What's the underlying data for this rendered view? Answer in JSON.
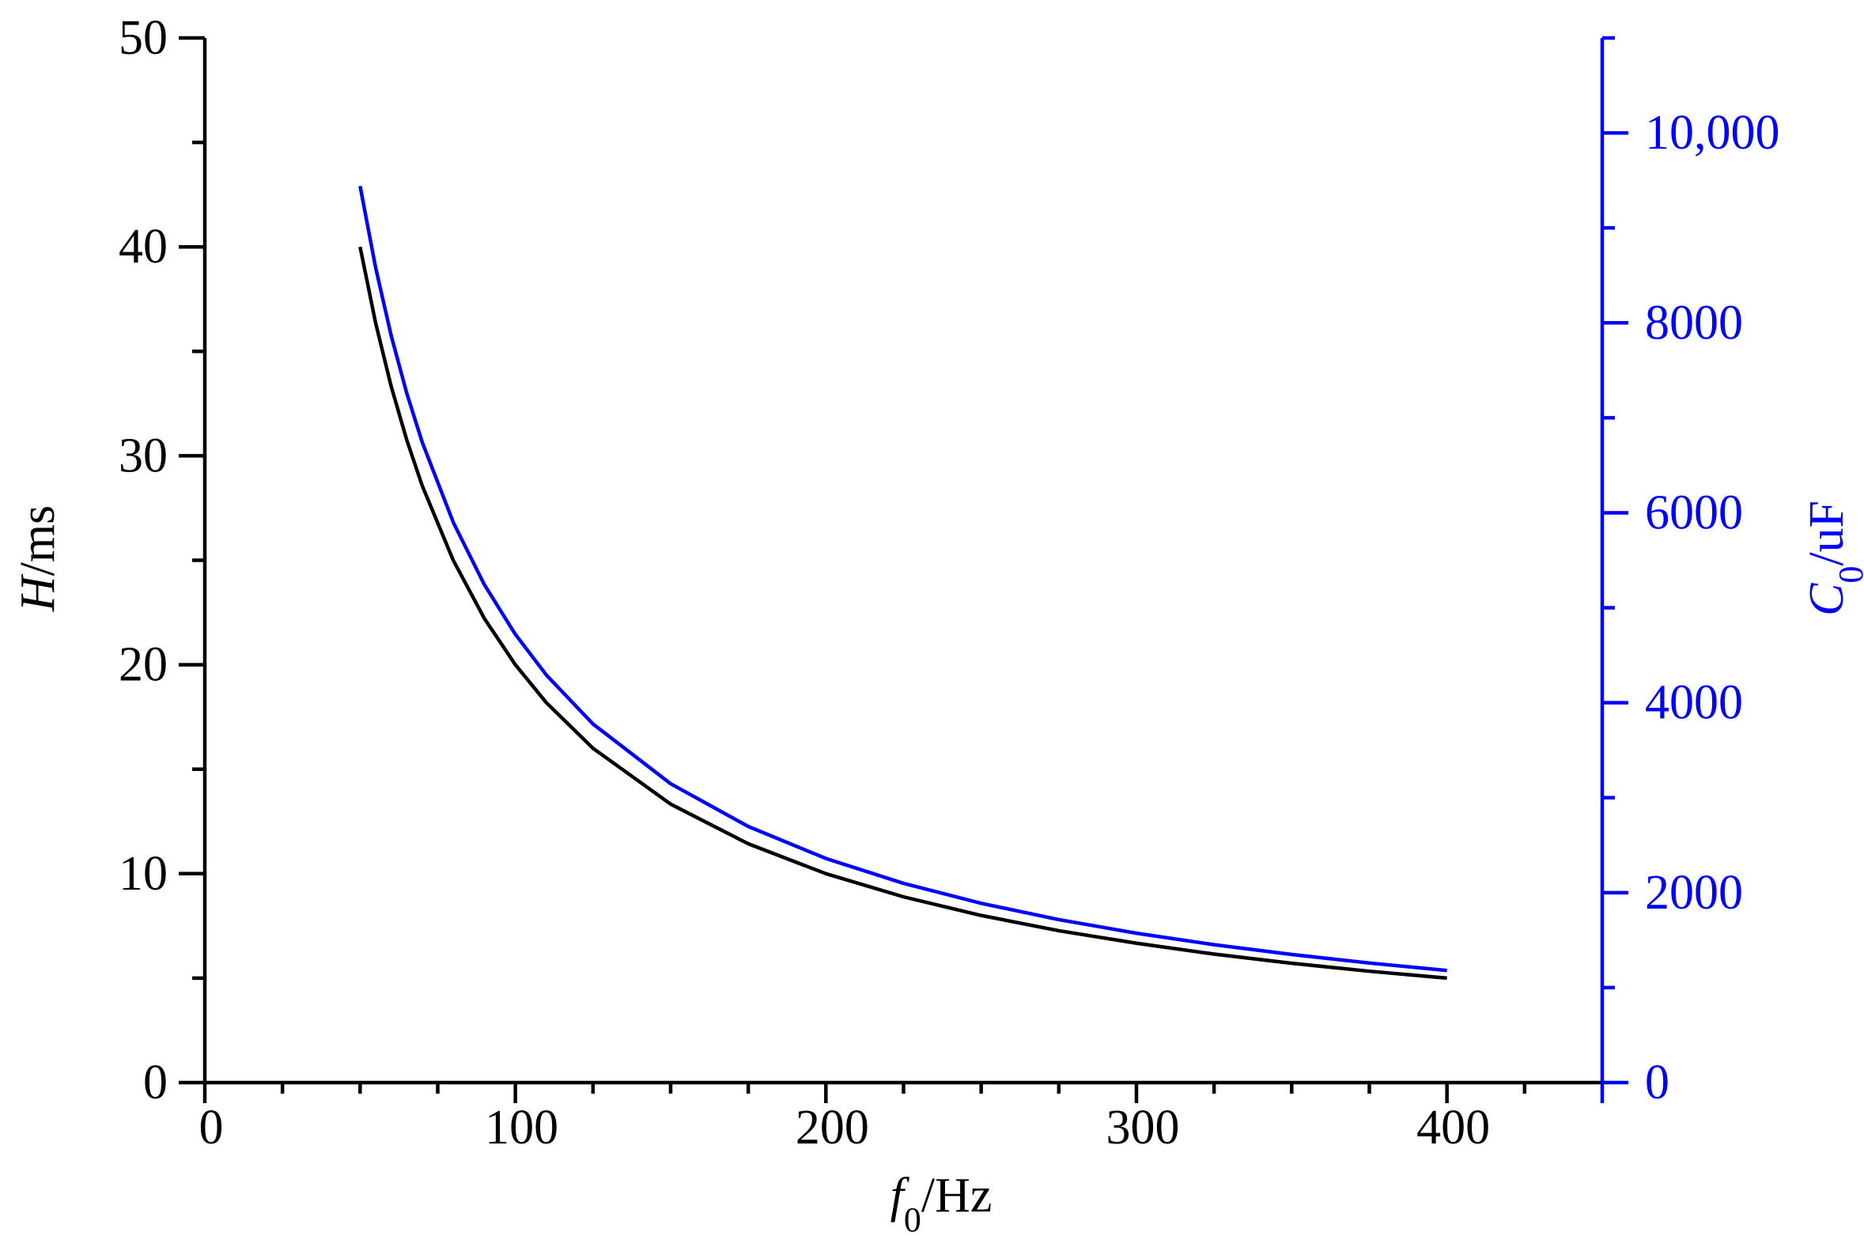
{
  "chart_data": {
    "type": "line",
    "x_label": {
      "symbol": "f",
      "subscript": "0",
      "unit": "/Hz"
    },
    "y_label": {
      "symbol": "H",
      "unit": "/ms"
    },
    "y2_label": {
      "symbol": "C",
      "subscript": "0",
      "unit": "/uF"
    },
    "x": [
      50,
      55,
      60,
      65,
      70,
      80,
      90,
      100,
      110,
      125,
      150,
      175,
      200,
      225,
      250,
      275,
      300,
      325,
      350,
      375,
      400
    ],
    "series": [
      {
        "name": "H",
        "color": "#000000",
        "axis": "y",
        "values": [
          40,
          36.36,
          33.33,
          30.77,
          28.57,
          25,
          22.22,
          20,
          18.18,
          16,
          13.33,
          11.43,
          10,
          8.89,
          8,
          7.27,
          6.67,
          6.15,
          5.71,
          5.33,
          5
        ]
      },
      {
        "name": "C0",
        "color": "#0000ff",
        "axis": "y2",
        "values": [
          9440,
          8582,
          7867,
          7262,
          6743,
          5900,
          5244,
          4720,
          4291,
          3776,
          3147,
          2697,
          2360,
          2098,
          1888,
          1716,
          1573,
          1452,
          1349,
          1259,
          1180
        ]
      }
    ],
    "xlim": [
      0,
      450
    ],
    "xticks": [
      0,
      100,
      200,
      300,
      400
    ],
    "xminorticks": [
      25,
      50,
      75,
      125,
      150,
      175,
      225,
      250,
      275,
      325,
      350,
      375,
      425,
      450
    ],
    "ylim": [
      0,
      50
    ],
    "yticks": [
      0,
      10,
      20,
      30,
      40,
      50
    ],
    "yminorticks": [
      5,
      15,
      25,
      35,
      45
    ],
    "y2lim": [
      0,
      11000
    ],
    "y2ticks": [
      0,
      2000,
      4000,
      6000,
      8000,
      {
        "value": 10000,
        "label": "10,000"
      }
    ],
    "y2minorticks": [
      1000,
      3000,
      5000,
      7000,
      9000,
      11000
    ],
    "y2color": "#0000ff",
    "grid": false
  }
}
